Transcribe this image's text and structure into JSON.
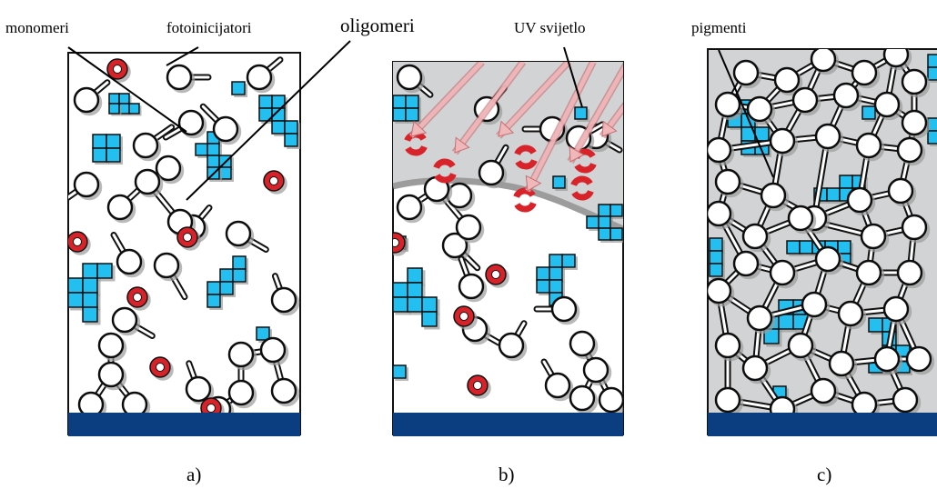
{
  "labels": {
    "monomeri": "monomeri",
    "fotoinicijatori": "fotoinicijatori",
    "oligomeri": "oligomeri",
    "uv_svjetlo": "UV svijetlo",
    "pigmenti": "pigmenti"
  },
  "captions": {
    "a": "a)",
    "b": "b)",
    "c": "c)"
  },
  "colors": {
    "pigment": "#21bff0",
    "photoinitiator": "#d8232a",
    "substrate": "#0b3e80",
    "cured_background": "#d2d3d5",
    "uv_arrow": "#f2b9bb",
    "outline": "#111111"
  }
}
